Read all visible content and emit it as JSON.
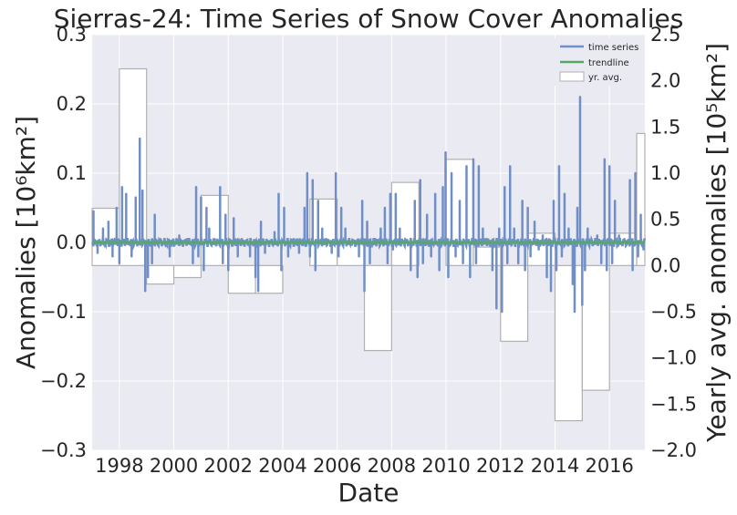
{
  "chart_data": {
    "type": "line",
    "title": "Sierras-24: Time Series of Snow Cover Anomalies",
    "xlabel": "Date",
    "ylabel": "Anomalies [10⁶km²]",
    "ylabel_right": "Yearly avg. anomalies [10⁵km²]",
    "xlim": [
      1997.0,
      2017.3
    ],
    "ylim": [
      -0.3,
      0.3
    ],
    "ylim_right": [
      -2.0,
      2.5
    ],
    "x_ticks": [
      "1998",
      "2000",
      "2002",
      "2004",
      "2006",
      "2008",
      "2010",
      "2012",
      "2014",
      "2016"
    ],
    "y_ticks": [
      "−0.3",
      "−0.2",
      "−0.1",
      "0.0",
      "0.1",
      "0.2",
      "0.3"
    ],
    "y_ticks_right": [
      "−2.0",
      "−1.5",
      "−1.0",
      "−0.5",
      "0.0",
      "0.5",
      "1.0",
      "1.5",
      "2.0",
      "2.5"
    ],
    "grid": true,
    "legend_position": "top-right",
    "series": [
      {
        "name": "time series",
        "color": "#6f8fc6",
        "spikes": [
          {
            "x": 1997.05,
            "y": 0.045
          },
          {
            "x": 1997.2,
            "y": -0.015
          },
          {
            "x": 1997.4,
            "y": 0.02
          },
          {
            "x": 1997.6,
            "y": 0.03
          },
          {
            "x": 1997.75,
            "y": -0.02
          },
          {
            "x": 1997.9,
            "y": 0.05
          },
          {
            "x": 1998.0,
            "y": -0.03
          },
          {
            "x": 1998.1,
            "y": 0.08
          },
          {
            "x": 1998.25,
            "y": 0.07
          },
          {
            "x": 1998.45,
            "y": -0.02
          },
          {
            "x": 1998.6,
            "y": 0.065
          },
          {
            "x": 1998.75,
            "y": 0.15
          },
          {
            "x": 1998.85,
            "y": 0.075
          },
          {
            "x": 1998.95,
            "y": -0.07
          },
          {
            "x": 1999.05,
            "y": -0.05
          },
          {
            "x": 1999.2,
            "y": -0.03
          },
          {
            "x": 1999.3,
            "y": 0.04
          },
          {
            "x": 1999.5,
            "y": 0.005
          },
          {
            "x": 1999.7,
            "y": -0.005
          },
          {
            "x": 1999.85,
            "y": -0.02
          },
          {
            "x": 2000.0,
            "y": -0.005
          },
          {
            "x": 2000.2,
            "y": 0.01
          },
          {
            "x": 2000.5,
            "y": 0.005
          },
          {
            "x": 2000.7,
            "y": -0.03
          },
          {
            "x": 2000.82,
            "y": 0.08
          },
          {
            "x": 2000.9,
            "y": -0.02
          },
          {
            "x": 2001.0,
            "y": 0.065
          },
          {
            "x": 2001.1,
            "y": -0.04
          },
          {
            "x": 2001.2,
            "y": 0.05
          },
          {
            "x": 2001.3,
            "y": 0.02
          },
          {
            "x": 2001.5,
            "y": 0.005
          },
          {
            "x": 2001.7,
            "y": 0.08
          },
          {
            "x": 2001.8,
            "y": -0.03
          },
          {
            "x": 2001.9,
            "y": 0.04
          },
          {
            "x": 2002.0,
            "y": -0.04
          },
          {
            "x": 2002.2,
            "y": 0.035
          },
          {
            "x": 2002.35,
            "y": -0.02
          },
          {
            "x": 2002.5,
            "y": 0.005
          },
          {
            "x": 2002.8,
            "y": -0.02
          },
          {
            "x": 2003.0,
            "y": -0.05
          },
          {
            "x": 2003.1,
            "y": -0.07
          },
          {
            "x": 2003.2,
            "y": 0.03
          },
          {
            "x": 2003.35,
            "y": -0.015
          },
          {
            "x": 2003.5,
            "y": 0.0
          },
          {
            "x": 2003.7,
            "y": 0.015
          },
          {
            "x": 2003.85,
            "y": 0.07
          },
          {
            "x": 2003.95,
            "y": -0.04
          },
          {
            "x": 2004.05,
            "y": 0.05
          },
          {
            "x": 2004.2,
            "y": -0.02
          },
          {
            "x": 2004.4,
            "y": 0.005
          },
          {
            "x": 2004.6,
            "y": -0.015
          },
          {
            "x": 2004.8,
            "y": 0.05
          },
          {
            "x": 2004.9,
            "y": 0.1
          },
          {
            "x": 2005.0,
            "y": -0.02
          },
          {
            "x": 2005.1,
            "y": 0.09
          },
          {
            "x": 2005.2,
            "y": -0.04
          },
          {
            "x": 2005.3,
            "y": 0.06
          },
          {
            "x": 2005.45,
            "y": 0.02
          },
          {
            "x": 2005.6,
            "y": 0.005
          },
          {
            "x": 2005.8,
            "y": -0.015
          },
          {
            "x": 2005.95,
            "y": 0.1
          },
          {
            "x": 2006.05,
            "y": -0.02
          },
          {
            "x": 2006.15,
            "y": 0.05
          },
          {
            "x": 2006.3,
            "y": 0.02
          },
          {
            "x": 2006.5,
            "y": 0.0
          },
          {
            "x": 2006.8,
            "y": -0.02
          },
          {
            "x": 2006.92,
            "y": 0.06
          },
          {
            "x": 2007.0,
            "y": -0.07
          },
          {
            "x": 2007.1,
            "y": 0.03
          },
          {
            "x": 2007.2,
            "y": -0.03
          },
          {
            "x": 2007.4,
            "y": 0.005
          },
          {
            "x": 2007.6,
            "y": 0.02
          },
          {
            "x": 2007.75,
            "y": 0.05
          },
          {
            "x": 2007.85,
            "y": -0.03
          },
          {
            "x": 2007.95,
            "y": 0.07
          },
          {
            "x": 2008.05,
            "y": -0.01
          },
          {
            "x": 2008.15,
            "y": 0.07
          },
          {
            "x": 2008.3,
            "y": 0.02
          },
          {
            "x": 2008.5,
            "y": 0.005
          },
          {
            "x": 2008.7,
            "y": -0.04
          },
          {
            "x": 2008.85,
            "y": 0.06
          },
          {
            "x": 2008.95,
            "y": -0.05
          },
          {
            "x": 2009.05,
            "y": 0.09
          },
          {
            "x": 2009.15,
            "y": -0.03
          },
          {
            "x": 2009.3,
            "y": 0.04
          },
          {
            "x": 2009.45,
            "y": -0.02
          },
          {
            "x": 2009.6,
            "y": 0.07
          },
          {
            "x": 2009.75,
            "y": -0.04
          },
          {
            "x": 2009.88,
            "y": 0.08
          },
          {
            "x": 2009.98,
            "y": 0.13
          },
          {
            "x": 2010.08,
            "y": -0.05
          },
          {
            "x": 2010.2,
            "y": 0.1
          },
          {
            "x": 2010.35,
            "y": -0.02
          },
          {
            "x": 2010.5,
            "y": 0.06
          },
          {
            "x": 2010.62,
            "y": -0.03
          },
          {
            "x": 2010.75,
            "y": 0.11
          },
          {
            "x": 2010.88,
            "y": -0.05
          },
          {
            "x": 2011.0,
            "y": 0.12
          },
          {
            "x": 2011.1,
            "y": -0.03
          },
          {
            "x": 2011.2,
            "y": 0.11
          },
          {
            "x": 2011.35,
            "y": 0.02
          },
          {
            "x": 2011.5,
            "y": 0.005
          },
          {
            "x": 2011.7,
            "y": -0.04
          },
          {
            "x": 2011.85,
            "y": -0.095
          },
          {
            "x": 2011.95,
            "y": 0.02
          },
          {
            "x": 2012.05,
            "y": -0.1
          },
          {
            "x": 2012.15,
            "y": 0.08
          },
          {
            "x": 2012.25,
            "y": -0.03
          },
          {
            "x": 2012.35,
            "y": 0.11
          },
          {
            "x": 2012.5,
            "y": 0.02
          },
          {
            "x": 2012.65,
            "y": -0.03
          },
          {
            "x": 2012.8,
            "y": 0.06
          },
          {
            "x": 2012.9,
            "y": -0.04
          },
          {
            "x": 2013.0,
            "y": 0.05
          },
          {
            "x": 2013.1,
            "y": -0.02
          },
          {
            "x": 2013.25,
            "y": 0.03
          },
          {
            "x": 2013.4,
            "y": -0.01
          },
          {
            "x": 2013.55,
            "y": 0.01
          },
          {
            "x": 2013.7,
            "y": -0.05
          },
          {
            "x": 2013.85,
            "y": -0.07
          },
          {
            "x": 2013.95,
            "y": 0.06
          },
          {
            "x": 2014.05,
            "y": -0.04
          },
          {
            "x": 2014.15,
            "y": 0.11
          },
          {
            "x": 2014.25,
            "y": -0.02
          },
          {
            "x": 2014.35,
            "y": 0.07
          },
          {
            "x": 2014.5,
            "y": 0.02
          },
          {
            "x": 2014.65,
            "y": -0.06
          },
          {
            "x": 2014.72,
            "y": -0.1
          },
          {
            "x": 2014.82,
            "y": 0.05
          },
          {
            "x": 2014.92,
            "y": 0.21
          },
          {
            "x": 2015.0,
            "y": -0.09
          },
          {
            "x": 2015.1,
            "y": -0.04
          },
          {
            "x": 2015.2,
            "y": 0.02
          },
          {
            "x": 2015.35,
            "y": 0.0
          },
          {
            "x": 2015.55,
            "y": 0.01
          },
          {
            "x": 2015.7,
            "y": -0.03
          },
          {
            "x": 2015.82,
            "y": 0.12
          },
          {
            "x": 2015.9,
            "y": -0.04
          },
          {
            "x": 2016.0,
            "y": 0.11
          },
          {
            "x": 2016.1,
            "y": -0.03
          },
          {
            "x": 2016.2,
            "y": 0.06
          },
          {
            "x": 2016.35,
            "y": 0.01
          },
          {
            "x": 2016.55,
            "y": 0.005
          },
          {
            "x": 2016.75,
            "y": 0.09
          },
          {
            "x": 2016.85,
            "y": -0.04
          },
          {
            "x": 2016.95,
            "y": 0.1
          },
          {
            "x": 2017.05,
            "y": -0.02
          },
          {
            "x": 2017.15,
            "y": 0.04
          },
          {
            "x": 2017.25,
            "y": -0.01
          }
        ]
      },
      {
        "name": "trendline",
        "color": "#55a868",
        "x": [
          1997.0,
          2017.3
        ],
        "y": [
          0.0,
          0.0
        ]
      },
      {
        "name": "yr.  avg.",
        "axis": "right",
        "type": "step",
        "color": "#b0b0b0",
        "years": [
          1997,
          1998,
          1999,
          2000,
          2001,
          2002,
          2003,
          2004,
          2005,
          2006,
          2007,
          2008,
          2009,
          2010,
          2011,
          2012,
          2013,
          2014,
          2015,
          2016,
          2017
        ],
        "values": [
          0.62,
          2.13,
          -0.2,
          -0.13,
          0.76,
          -0.3,
          -0.3,
          0.0,
          0.72,
          0.27,
          -0.92,
          0.9,
          0.0,
          1.15,
          0.2,
          -0.82,
          0.35,
          -1.68,
          -1.35,
          0.35,
          1.43
        ]
      }
    ]
  }
}
